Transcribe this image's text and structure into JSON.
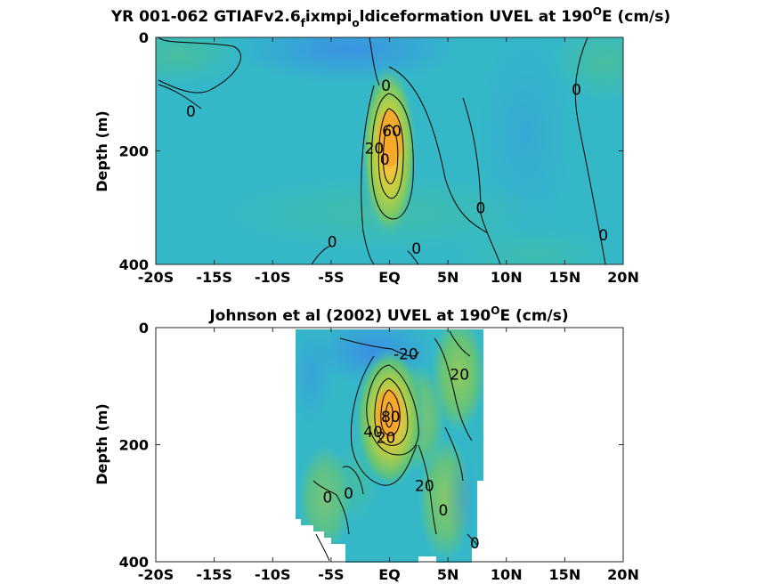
{
  "figure": {
    "colors": {
      "background": "#34b8c8",
      "deep_blue": "#3a8ee6",
      "green": "#5cc27c",
      "yellow": "#f2c03a",
      "orange": "#f6a82d",
      "contour": "#000000"
    }
  },
  "chart_data": [
    {
      "type": "heatmap",
      "panel": "top",
      "title": "YR 001-062 GTIAFv2.6_fixmpi_oldiceformation UVEL at 190",
      "title_display": {
        "prefix": "YR 001-062 GTIAFv2.6",
        "sub1": "f",
        "mid": "ixmpi",
        "sub2": "o",
        "suffix": "ldiceformation UVEL at 190",
        "sup": "O",
        "unit": "E (cm/s)"
      },
      "xlabel": "",
      "ylabel": "Depth (m)",
      "xlim": [
        -20,
        20
      ],
      "ylim": [
        0,
        400
      ],
      "y_reversed": true,
      "x_ticks": [
        -20,
        -15,
        -10,
        -5,
        0,
        5,
        10,
        15,
        20
      ],
      "x_tick_labels": [
        "-20S",
        "-15S",
        "-10S",
        "-5S",
        "EQ",
        "5N",
        "10N",
        "15N",
        "20N"
      ],
      "y_ticks": [
        0,
        200,
        400
      ],
      "y_tick_labels": [
        "0",
        "200",
        "400"
      ],
      "data_lon_range": [
        -20,
        20
      ],
      "core": {
        "lat": 0,
        "depth": 170,
        "max_cms": 100
      },
      "contour_labels": [
        {
          "text": "0",
          "lat": -17,
          "depth": 130
        },
        {
          "text": "0",
          "lat": -0.3,
          "depth": 85
        },
        {
          "text": "0",
          "lat": 16,
          "depth": 92
        },
        {
          "text": "0",
          "lat": 7.8,
          "depth": 300
        },
        {
          "text": "0",
          "lat": -4.9,
          "depth": 360
        },
        {
          "text": "0",
          "lat": 2.3,
          "depth": 372
        },
        {
          "text": "0",
          "lat": 18.3,
          "depth": 348
        },
        {
          "text": "20",
          "lat": -1.3,
          "depth": 195
        },
        {
          "text": "60",
          "lat": 0.2,
          "depth": 165
        },
        {
          "text": "0",
          "lat": -0.4,
          "depth": 215
        }
      ]
    },
    {
      "type": "heatmap",
      "panel": "bottom",
      "title": "Johnson et al (2002) UVEL at 190",
      "title_display": {
        "prefix": "Johnson et al (2002) UVEL at 190",
        "sup": "O",
        "unit": "E (cm/s)"
      },
      "xlabel": "",
      "ylabel": "Depth (m)",
      "xlim": [
        -20,
        20
      ],
      "ylim": [
        0,
        400
      ],
      "y_reversed": true,
      "x_ticks": [
        -20,
        -15,
        -10,
        -5,
        0,
        5,
        10,
        15,
        20
      ],
      "x_tick_labels": [
        "-20S",
        "-15S",
        "-10S",
        "-5S",
        "EQ",
        "5N",
        "10N",
        "15N",
        "20N"
      ],
      "y_ticks": [
        0,
        200,
        400
      ],
      "y_tick_labels": [
        "0",
        "200",
        "400"
      ],
      "data_lon_range": [
        -8,
        8
      ],
      "core": {
        "lat": 0.3,
        "depth": 150,
        "max_cms": 100
      },
      "contour_labels": [
        {
          "text": "-20",
          "lat": 1.4,
          "depth": 45
        },
        {
          "text": "20",
          "lat": 6.0,
          "depth": 80
        },
        {
          "text": "40",
          "lat": -1.4,
          "depth": 178
        },
        {
          "text": "80",
          "lat": 0.1,
          "depth": 152
        },
        {
          "text": "20",
          "lat": -0.3,
          "depth": 188
        },
        {
          "text": "20",
          "lat": 3.0,
          "depth": 270
        },
        {
          "text": "0",
          "lat": -5.3,
          "depth": 290
        },
        {
          "text": "0",
          "lat": -3.5,
          "depth": 283
        },
        {
          "text": "0",
          "lat": 4.6,
          "depth": 312
        },
        {
          "text": "0",
          "lat": 7.3,
          "depth": 368
        }
      ]
    }
  ]
}
